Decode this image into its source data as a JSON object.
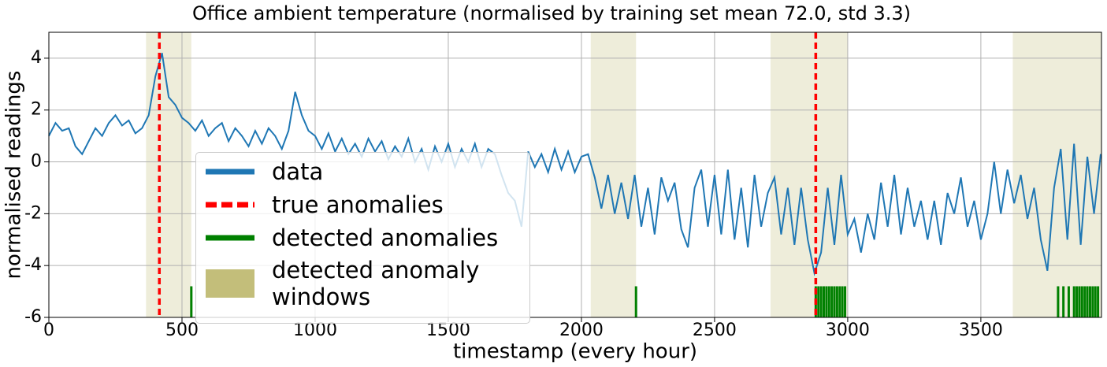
{
  "chart_data": {
    "type": "line",
    "title": "Office ambient temperature (normalised by training set mean 72.0, std 3.3)",
    "x_label": "timestamp (every hour)",
    "y_label": "normalised readings",
    "xlim": [
      0,
      3953
    ],
    "ylim": [
      -6,
      5
    ],
    "xticks": [
      0,
      500,
      1000,
      1500,
      2000,
      2500,
      3000,
      3500
    ],
    "yticks": [
      -6,
      -4,
      -2,
      0,
      2,
      4
    ],
    "grid": true,
    "legend": "lower left",
    "series": [
      {
        "name": "data",
        "color": "#1f77b4",
        "x": [
          0,
          25,
          50,
          75,
          100,
          125,
          150,
          175,
          200,
          225,
          250,
          275,
          300,
          325,
          350,
          375,
          400,
          425,
          450,
          475,
          500,
          525,
          550,
          575,
          600,
          625,
          650,
          675,
          700,
          725,
          750,
          775,
          800,
          825,
          850,
          875,
          900,
          925,
          950,
          975,
          1000,
          1025,
          1050,
          1075,
          1100,
          1125,
          1150,
          1175,
          1200,
          1225,
          1250,
          1275,
          1300,
          1325,
          1350,
          1375,
          1400,
          1425,
          1450,
          1475,
          1500,
          1525,
          1550,
          1575,
          1600,
          1625,
          1650,
          1675,
          1700,
          1725,
          1750,
          1775,
          1800,
          1825,
          1850,
          1875,
          1900,
          1925,
          1950,
          1975,
          2000,
          2025,
          2050,
          2075,
          2100,
          2125,
          2150,
          2175,
          2200,
          2225,
          2250,
          2275,
          2300,
          2325,
          2350,
          2375,
          2400,
          2425,
          2450,
          2475,
          2500,
          2525,
          2550,
          2575,
          2600,
          2625,
          2650,
          2675,
          2700,
          2725,
          2750,
          2775,
          2800,
          2825,
          2850,
          2875,
          2900,
          2925,
          2950,
          2975,
          3000,
          3025,
          3050,
          3075,
          3100,
          3125,
          3150,
          3175,
          3200,
          3225,
          3250,
          3275,
          3300,
          3325,
          3350,
          3375,
          3400,
          3425,
          3450,
          3475,
          3500,
          3525,
          3550,
          3575,
          3600,
          3625,
          3650,
          3675,
          3700,
          3725,
          3750,
          3775,
          3800,
          3825,
          3850,
          3875,
          3900,
          3925,
          3950
        ],
        "values": [
          1.0,
          1.5,
          1.2,
          1.3,
          0.6,
          0.3,
          0.8,
          1.3,
          1.0,
          1.5,
          1.8,
          1.4,
          1.6,
          1.1,
          1.3,
          1.8,
          3.3,
          4.2,
          2.5,
          2.2,
          1.7,
          1.5,
          1.2,
          1.6,
          1.0,
          1.3,
          1.5,
          0.8,
          1.3,
          1.0,
          0.6,
          1.2,
          0.7,
          1.3,
          1.0,
          0.5,
          1.2,
          2.7,
          1.8,
          1.2,
          1.0,
          0.5,
          1.1,
          0.4,
          0.9,
          0.3,
          0.7,
          0.2,
          0.9,
          0.4,
          0.8,
          0.1,
          0.6,
          0.2,
          0.9,
          0.0,
          0.5,
          -0.3,
          0.6,
          0.0,
          0.7,
          -0.2,
          0.5,
          0.0,
          0.7,
          -0.2,
          0.5,
          0.3,
          -0.5,
          -1.2,
          -1.5,
          -2.5,
          0.4,
          -0.2,
          0.3,
          -0.4,
          0.5,
          -0.3,
          0.4,
          -0.4,
          0.2,
          0.3,
          -0.6,
          -1.8,
          -0.5,
          -2.0,
          -0.8,
          -2.2,
          -0.5,
          -2.5,
          -1.0,
          -2.8,
          -0.6,
          -1.5,
          -0.8,
          -2.6,
          -3.3,
          -1.0,
          -0.3,
          -2.5,
          -0.5,
          -2.8,
          -0.3,
          -3.0,
          -1.0,
          -3.3,
          -0.5,
          -2.5,
          -1.2,
          -0.6,
          -2.8,
          -1.0,
          -3.2,
          -1.0,
          -3.0,
          -4.3,
          -3.5,
          -1.0,
          -3.2,
          -0.5,
          -2.8,
          -2.2,
          -3.5,
          -2.0,
          -3.0,
          -0.8,
          -2.5,
          -0.5,
          -2.8,
          -1.0,
          -2.5,
          -1.5,
          -3.0,
          -1.5,
          -3.2,
          -1.2,
          -2.0,
          -0.6,
          -2.5,
          -1.5,
          -3.0,
          -2.0,
          0.0,
          -2.0,
          -0.3,
          -1.6,
          -0.5,
          -2.2,
          -1.0,
          -3.0,
          -4.2,
          -1.0,
          0.5,
          -3.0,
          0.7,
          -3.2,
          0.2,
          -2.0,
          0.3
        ]
      }
    ],
    "true_anomalies": {
      "name": "true anomalies",
      "color": "#ff0000",
      "x": [
        415,
        2880
      ]
    },
    "detected_anomalies": {
      "name": "detected anomalies",
      "color": "#008000",
      "x": [
        535,
        2205,
        2880,
        2890,
        2900,
        2910,
        2920,
        2930,
        2940,
        2950,
        2960,
        2970,
        2980,
        2990,
        3790,
        3810,
        3830,
        3850,
        3860,
        3870,
        3880,
        3890,
        3900,
        3910,
        3920,
        3930,
        3940
      ]
    },
    "anomaly_windows": {
      "name": "detected anomaly windows",
      "color": "#bdb76b",
      "spans": [
        [
          365,
          535
        ],
        [
          2035,
          2205
        ],
        [
          2710,
          3000
        ],
        [
          3620,
          3953
        ]
      ]
    }
  }
}
